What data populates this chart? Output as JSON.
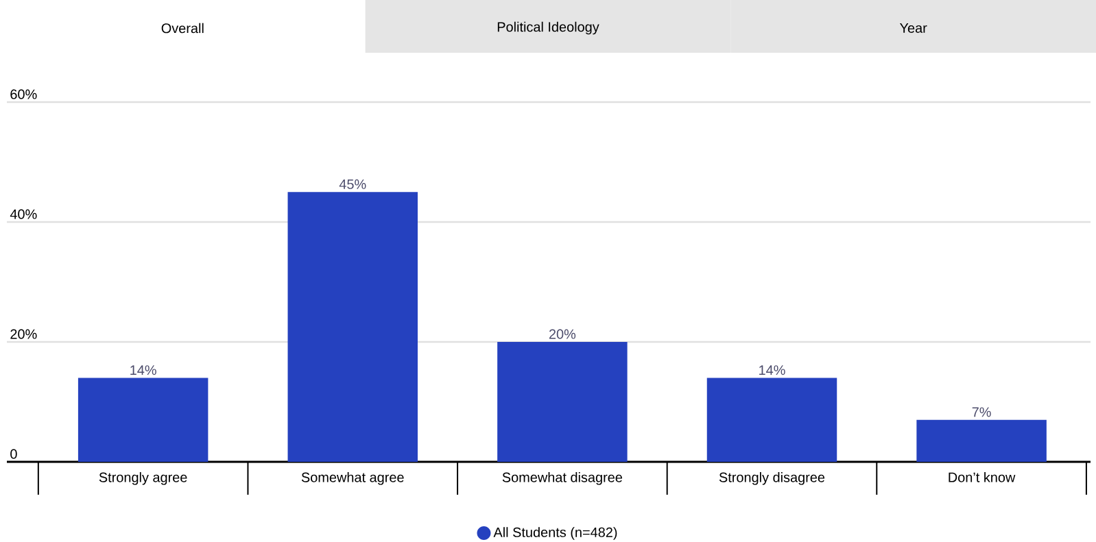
{
  "chart_data": {
    "type": "bar",
    "annotations": [
      "Overall",
      "Political Ideology",
      "Year"
    ],
    "categories": [
      "Strongly agree",
      "Somewhat agree",
      "Somewhat disagree",
      "Strongly disagree",
      "Don’t know"
    ],
    "series": [
      {
        "name": "All Students (n=482)",
        "color": "#2541bf",
        "values": [
          14,
          45,
          20,
          14,
          7
        ],
        "value_labels": [
          "14%",
          "45%",
          "20%",
          "14%",
          "7%"
        ]
      }
    ],
    "ylim": [
      0,
      60
    ],
    "yticks": [
      {
        "value": 0,
        "label": "0"
      },
      {
        "value": 20,
        "label": "20%"
      },
      {
        "value": 40,
        "label": "40%"
      },
      {
        "value": 60,
        "label": "60%"
      }
    ],
    "grid": "y",
    "legend": "bottom"
  }
}
